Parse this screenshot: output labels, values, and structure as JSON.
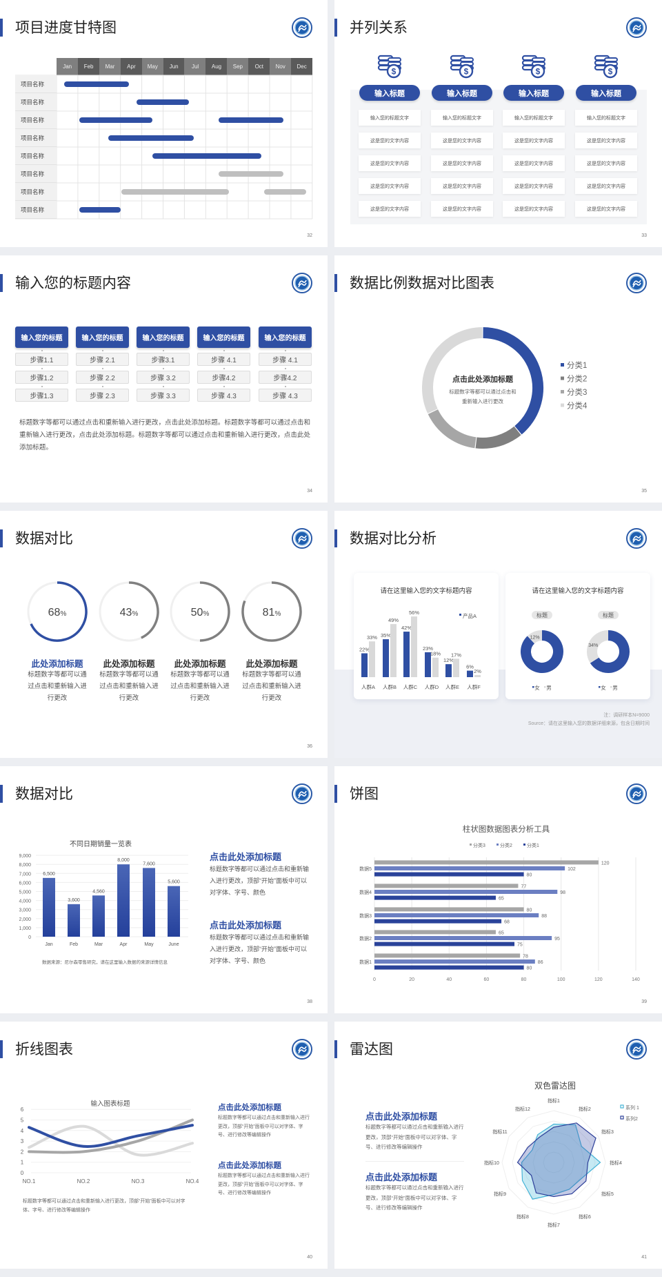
{
  "colors": {
    "blue": "#2f4fa3",
    "mid_blue": "#6b7fc2",
    "gray": "#808080",
    "light_gray": "#bfbfbf",
    "cyan": "#45b3d6"
  },
  "logo_icon": "university-seal-icon",
  "slides": [
    {
      "title": "项目进度甘特图",
      "page": "32",
      "months": [
        "Jan",
        "Feb",
        "Mar",
        "Apr",
        "May",
        "Jun",
        "Jul",
        "Aug",
        "Sep",
        "Oct",
        "Nov",
        "Dec"
      ],
      "rows": [
        {
          "label": "项目名称",
          "bars": [
            {
              "start": 0.35,
              "end": 3.4,
              "status": "active"
            }
          ]
        },
        {
          "label": "项目名称",
          "bars": [
            {
              "start": 3.75,
              "end": 6.2,
              "status": "active"
            }
          ]
        },
        {
          "label": "项目名称",
          "bars": [
            {
              "start": 1.07,
              "end": 4.5,
              "status": "active"
            },
            {
              "start": 7.6,
              "end": 10.65,
              "status": "active"
            }
          ]
        },
        {
          "label": "项目名称",
          "bars": [
            {
              "start": 2.43,
              "end": 6.44,
              "status": "active"
            }
          ]
        },
        {
          "label": "项目名称",
          "bars": [
            {
              "start": 4.5,
              "end": 9.6,
              "status": "active"
            }
          ]
        },
        {
          "label": "项目名称",
          "bars": [
            {
              "start": 7.6,
              "end": 10.65,
              "status": "pending"
            }
          ]
        },
        {
          "label": "项目名称",
          "bars": [
            {
              "start": 3.04,
              "end": 8.1,
              "status": "pending"
            },
            {
              "start": 9.74,
              "end": 11.7,
              "status": "pending"
            }
          ]
        },
        {
          "label": "项目名称",
          "bars": [
            {
              "start": 1.07,
              "end": 3.0,
              "status": "active"
            }
          ]
        }
      ]
    },
    {
      "title": "并列关系",
      "page": "33",
      "icon": "coins-dollar-icon",
      "columns": [
        {
          "heading": "输入标题",
          "items": [
            "输入您的标题文字",
            "这是您的文字内容",
            "这是您的文字内容",
            "这是您的文字内容",
            "这是您的文字内容"
          ]
        },
        {
          "heading": "输入标题",
          "items": [
            "输入您的标题文字",
            "这是您的文字内容",
            "这是您的文字内容",
            "这是您的文字内容",
            "这是您的文字内容"
          ]
        },
        {
          "heading": "输入标题",
          "items": [
            "输入您的标题文字",
            "这是您的文字内容",
            "这是您的文字内容",
            "这是您的文字内容",
            "这是您的文字内容"
          ]
        },
        {
          "heading": "输入标题",
          "items": [
            "输入您的标题文字",
            "这是您的文字内容",
            "这是您的文字内容",
            "这是您的文字内容",
            "这是您的文字内容"
          ]
        }
      ]
    },
    {
      "title": "输入您的标题内容",
      "page": "34",
      "columns": [
        {
          "heading": "输入您的标题",
          "steps": [
            "步骤1.1",
            "步骤1.2",
            "步骤1.3"
          ]
        },
        {
          "heading": "输入您的标题",
          "steps": [
            "步骤 2.1",
            "步骤 2.2",
            "步骤 2.3"
          ]
        },
        {
          "heading": "输入您的标题",
          "steps": [
            "步骤3.1",
            "步骤 3.2",
            "步骤 3.3"
          ]
        },
        {
          "heading": "输入您的标题",
          "steps": [
            "步骤 4.1",
            "步骤4.2",
            "步骤 4.3"
          ]
        },
        {
          "heading": "输入您的标题",
          "steps": [
            "步骤 4.1",
            "步骤4.2",
            "步骤 4.3"
          ]
        }
      ],
      "paragraph": "标题数字等都可以通过点击和重新输入进行更改，点击此处添加标题。标题数字等都可以通过点击和重新输入进行更改，点击此处添加标题。标题数字等都可以通过点击和重新输入进行更改，点击此处添加标题。"
    },
    {
      "title": "数据比例数据对比图表",
      "page": "35",
      "center_heading": "点击此处添加标题",
      "center_lines": [
        "标题数字等都可以通过点击和",
        "重新输入进行更改"
      ]
    },
    {
      "title": "数据对比",
      "page": "36",
      "items": [
        {
          "value": 68,
          "unit": "%",
          "heading": "此处添加标题",
          "body": "标题数字等都可以通过点击和重新输入进行更改",
          "highlight": true
        },
        {
          "value": 43,
          "unit": "%",
          "heading": "此处添加标题",
          "body": "标题数字等都可以通过点击和重新输入进行更改",
          "highlight": false
        },
        {
          "value": 50,
          "unit": "%",
          "heading": "此处添加标题",
          "body": "标题数字等都可以通过点击和重新输入进行更改",
          "highlight": false
        },
        {
          "value": 81,
          "unit": "%",
          "heading": "此处添加标题",
          "body": "标题数字等都可以通过点击和重新输入进行更改",
          "highlight": false
        }
      ]
    },
    {
      "title": "数据对比分析",
      "page": "37",
      "card_titles": [
        "请在这里输入您的文字标题内容",
        "请在这里输入您的文字标题内容"
      ],
      "notes": [
        "注：调研样本N=9000",
        "Source：请在这里输入您的数据详细来源，包含日期时间"
      ]
    },
    {
      "title": "数据对比",
      "page": "38",
      "source": "数据来源：尼尔森零售研究，请在这里输入数据的来源详情信息",
      "blocks": [
        {
          "heading": "点击此处添加标题",
          "body": "标题数字等都可以通过点击和重新输入进行更改，顶部“开始”面板中可以对字体、字号、颜色"
        },
        {
          "heading": "点击此处添加标题",
          "body": "标题数字等都可以通过点击和重新输入进行更改，顶部“开始”面板中可以对字体、字号、颜色"
        }
      ]
    },
    {
      "title": "饼图",
      "page": "39"
    },
    {
      "title": "折线图表",
      "page": "40",
      "paragraph": "标题数字等都可以通过点击和重新输入进行更改，顶部“开始”面板中可以对字体、字号、进行修改等编辑操作",
      "blocks": [
        {
          "heading": "点击此处添加标题",
          "body": "标题数字等都可以通过点击和重新输入进行更改，顶部“开始”面板中可以对字体、字号、进行修改等编辑操作"
        },
        {
          "heading": "点击此处添加标题",
          "body": "标题数字等都可以通过点击和重新输入进行更改，顶部“开始”面板中可以对字体、字号、进行修改等编辑操作"
        }
      ]
    },
    {
      "title": "雷达图",
      "page": "41",
      "blocks": [
        {
          "heading": "点击此处添加标题",
          "body": "标题数字等都可以通过点击和重新输入进行更改，顶部“开始”面板中可以对字体、字号、进行修改等编辑操作"
        },
        {
          "heading": "点击此处添加标题",
          "body": "标题数字等都可以通过点击和重新输入进行更改，顶部“开始”面板中可以对字体、字号、进行修改等编辑操作"
        }
      ]
    }
  ],
  "chart_data": [
    {
      "type": "pie",
      "variant": "donut",
      "categories": [
        "分类1",
        "分类2",
        "分类3",
        "分类4"
      ],
      "values": [
        39,
        13,
        16,
        32
      ],
      "colors": [
        "#2f4fa3",
        "#7f7f7f",
        "#a6a6a6",
        "#d9d9d9"
      ],
      "legend": "right"
    },
    {
      "type": "bar",
      "categories": [
        "人群A",
        "人群B",
        "人群C",
        "人群D",
        "人群E",
        "人群F"
      ],
      "series": [
        {
          "name": "产品A",
          "values": [
            22,
            35,
            42,
            23,
            12,
            6
          ],
          "color": "#2f4fa3"
        },
        {
          "values": [
            33,
            49,
            56,
            18,
            17,
            2
          ],
          "color": "#d9d9d9"
        }
      ],
      "data_labels": [
        "22%",
        "35%",
        "42%",
        "23%",
        "12%",
        "6%",
        "33%",
        "49%",
        "56%",
        "18%",
        "17%",
        "2%"
      ],
      "unit": "%",
      "legend": "top-right"
    },
    {
      "type": "pie",
      "variant": "donut",
      "title": "标题",
      "categories": [
        "女",
        "男"
      ],
      "values": [
        88,
        12
      ],
      "labels": [
        "",
        "12%"
      ],
      "colors": [
        "#2f4fa3",
        "#e0e0e0"
      ],
      "legend": "bottom"
    },
    {
      "type": "pie",
      "variant": "donut",
      "title": "标题",
      "categories": [
        "女",
        "男"
      ],
      "values": [
        66,
        34
      ],
      "labels": [
        "",
        "34%"
      ],
      "colors": [
        "#2f4fa3",
        "#e0e0e0"
      ],
      "legend": "bottom"
    },
    {
      "type": "bar",
      "title": "不同日期销量一览表",
      "categories": [
        "Jan",
        "Feb",
        "Mar",
        "Apr",
        "May",
        "June"
      ],
      "values": [
        6500,
        3600,
        4560,
        8000,
        7600,
        5600
      ],
      "data_labels": [
        "6,500",
        "3,600",
        "4,560",
        "8,000",
        "7,600",
        "5,600"
      ],
      "ylim": [
        0,
        9000
      ],
      "yticks": [
        "0",
        "1,000",
        "2,000",
        "3,000",
        "4,000",
        "5,000",
        "6,000",
        "7,000",
        "8,000",
        "9,000"
      ],
      "grid": true
    },
    {
      "type": "bar",
      "orientation": "horizontal",
      "title": "柱状图数据图表分析工具",
      "categories": [
        "数据1",
        "数据2",
        "数据3",
        "数据4",
        "数据5"
      ],
      "series": [
        {
          "name": "分类3",
          "values": [
            78,
            65,
            80,
            77,
            120
          ],
          "color": "#a6a6a6"
        },
        {
          "name": "分类2",
          "values": [
            86,
            95,
            88,
            98,
            102
          ],
          "color": "#6b7fc2"
        },
        {
          "name": "分类1",
          "values": [
            80,
            75,
            68,
            65,
            80
          ],
          "color": "#2a439a"
        }
      ],
      "xlim": [
        0,
        140
      ],
      "xticks": [
        "0",
        "20",
        "40",
        "60",
        "80",
        "100",
        "120",
        "140"
      ],
      "legend": "top",
      "grid": true
    },
    {
      "type": "line",
      "title": "输入图表标题",
      "categories": [
        "NO.1",
        "NO.2",
        "NO.3",
        "NO.4"
      ],
      "series": [
        {
          "values": [
            4.3,
            2.5,
            3.5,
            4.5
          ],
          "color": "#2f4fa3"
        },
        {
          "values": [
            2.0,
            2.0,
            3.0,
            5.0
          ],
          "color": "#a6a6a6"
        },
        {
          "values": [
            2.4,
            4.4,
            1.7,
            2.8
          ],
          "color": "#dadada"
        }
      ],
      "ylim": [
        0,
        6
      ],
      "yticks": [
        "0",
        "1",
        "2",
        "3",
        "4",
        "5",
        "6"
      ],
      "smooth": true,
      "grid": true
    },
    {
      "type": "radar",
      "title": "双色雷达图",
      "categories": [
        "指标1",
        "指标2",
        "指标3",
        "指标4",
        "指标5",
        "指标6",
        "指标7",
        "指标8",
        "指标9",
        "指标10",
        "指标11",
        "指标12"
      ],
      "series": [
        {
          "name": "系列 1",
          "values": [
            3.7,
            4.2,
            3.1,
            4.5,
            3.1,
            3.0,
            3.1,
            4.1,
            3.5,
            3.1,
            2.4,
            3.1
          ],
          "color": "#45b3d6"
        },
        {
          "name": "系列2",
          "values": [
            3.4,
            4.4,
            4.7,
            3.3,
            3.6,
            3.5,
            3.3,
            3.4,
            2.5,
            3.5,
            2.9,
            2.8
          ],
          "color": "#2d3f99"
        }
      ],
      "rmax": 5,
      "legend": "top-right"
    }
  ]
}
